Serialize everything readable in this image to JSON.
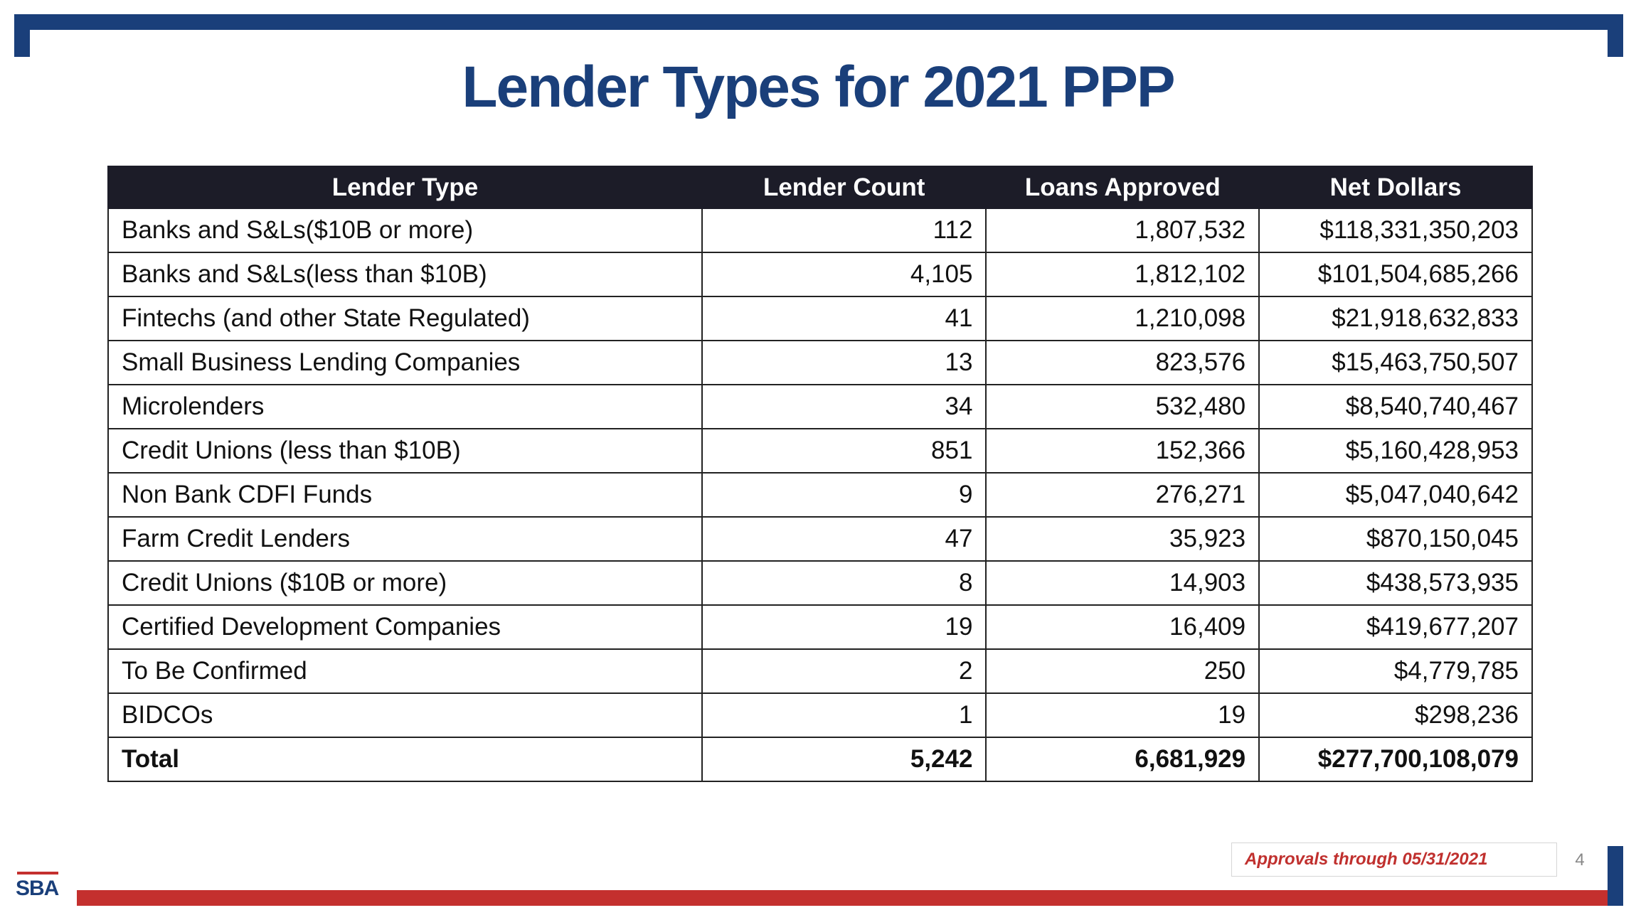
{
  "slide": {
    "title": "Lender Types for 2021 PPP",
    "footnote": "Approvals through 05/31/2021",
    "page_number": "4",
    "logo_text": "SBA"
  },
  "colors": {
    "navy": "#1a3f7a",
    "red": "#c4302e",
    "header_bg": "#1c1c28"
  },
  "table": {
    "headers": [
      "Lender Type",
      "Lender Count",
      "Loans Approved",
      "Net Dollars"
    ],
    "rows": [
      [
        "Banks and S&Ls($10B or more)",
        "112",
        "1,807,532",
        "$118,331,350,203"
      ],
      [
        "Banks and S&Ls(less than $10B)",
        "4,105",
        "1,812,102",
        "$101,504,685,266"
      ],
      [
        "Fintechs (and other State Regulated)",
        "41",
        "1,210,098",
        "$21,918,632,833"
      ],
      [
        "Small Business Lending Companies",
        "13",
        "823,576",
        "$15,463,750,507"
      ],
      [
        "Microlenders",
        "34",
        "532,480",
        "$8,540,740,467"
      ],
      [
        "Credit Unions (less than $10B)",
        "851",
        "152,366",
        "$5,160,428,953"
      ],
      [
        "Non Bank CDFI Funds",
        "9",
        "276,271",
        "$5,047,040,642"
      ],
      [
        "Farm Credit Lenders",
        "47",
        "35,923",
        "$870,150,045"
      ],
      [
        "Credit Unions ($10B or more)",
        "8",
        "14,903",
        "$438,573,935"
      ],
      [
        "Certified Development Companies",
        "19",
        "16,409",
        "$419,677,207"
      ],
      [
        "To Be Confirmed",
        "2",
        "250",
        "$4,779,785"
      ],
      [
        "BIDCOs",
        "1",
        "19",
        "$298,236"
      ]
    ],
    "total": [
      "Total",
      "5,242",
      "6,681,929",
      "$277,700,108,079"
    ]
  }
}
